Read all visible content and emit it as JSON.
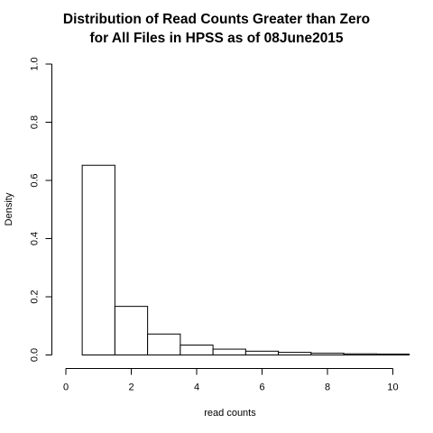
{
  "chart_data": {
    "type": "histogram",
    "title": [
      "Distribution of Read Counts Greater than Zero",
      "for All Files in HPSS as of 08June2015"
    ],
    "xlabel": "read counts",
    "ylabel": "Density",
    "xlim": [
      0,
      10.5
    ],
    "ylim": [
      0,
      1.0
    ],
    "xticks": [
      0,
      2,
      4,
      6,
      8,
      10
    ],
    "yticks": [
      0.0,
      0.2,
      0.4,
      0.6,
      0.8,
      1.0
    ],
    "xtick_labels": [
      "0",
      "2",
      "4",
      "6",
      "8",
      "10"
    ],
    "ytick_labels": [
      "0.0",
      "0.2",
      "0.4",
      "0.6",
      "0.8",
      "1.0"
    ],
    "bins": [
      {
        "x0": -0.5,
        "x1": 0.5,
        "density": 0.0
      },
      {
        "x0": 0.5,
        "x1": 1.5,
        "density": 0.652
      },
      {
        "x0": 1.5,
        "x1": 2.5,
        "density": 0.167
      },
      {
        "x0": 2.5,
        "x1": 3.5,
        "density": 0.072
      },
      {
        "x0": 3.5,
        "x1": 4.5,
        "density": 0.034
      },
      {
        "x0": 4.5,
        "x1": 5.5,
        "density": 0.02
      },
      {
        "x0": 5.5,
        "x1": 6.5,
        "density": 0.013
      },
      {
        "x0": 6.5,
        "x1": 7.5,
        "density": 0.009
      },
      {
        "x0": 7.5,
        "x1": 8.5,
        "density": 0.006
      },
      {
        "x0": 8.5,
        "x1": 9.5,
        "density": 0.004
      },
      {
        "x0": 9.5,
        "x1": 10.5,
        "density": 0.003
      }
    ],
    "bar_fill": "#ffffff",
    "bar_stroke": "#000000",
    "grid": false,
    "legend": "none"
  }
}
